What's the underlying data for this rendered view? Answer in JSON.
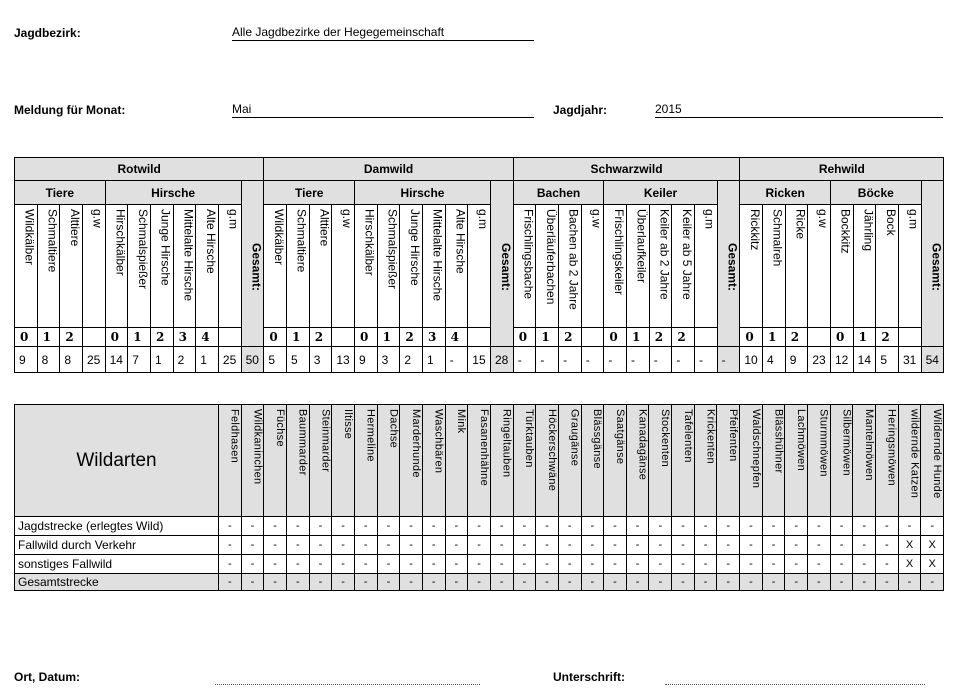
{
  "header": {
    "jagdbezirk_label": "Jagdbezirk:",
    "jagdbezirk_value": "Alle Jagdbezirke der Hegegemeinschaft",
    "monat_label": "Meldung für Monat:",
    "monat_value": "Mai",
    "jagdjahr_label": "Jagdjahr:",
    "jagdjahr_value": "2015"
  },
  "upper": {
    "groups": [
      {
        "name": "Rotwild",
        "total_label": "Gesamt:",
        "total": "50",
        "subgroups": [
          {
            "name": "Tiere",
            "cols": [
              {
                "label": "Wildkälber",
                "age": "0",
                "value": "9"
              },
              {
                "label": "Schmaltiere",
                "age": "1",
                "value": "8"
              },
              {
                "label": "Alttiere",
                "age": "2",
                "value": "8"
              },
              {
                "label": "g.w",
                "age": "",
                "value": "25"
              }
            ]
          },
          {
            "name": "Hirsche",
            "cols": [
              {
                "label": "Hirschkälber",
                "age": "0",
                "value": "14"
              },
              {
                "label": "Schmalspießer",
                "age": "1",
                "value": "7"
              },
              {
                "label": "Junge Hirsche",
                "age": "2",
                "value": "1"
              },
              {
                "label": "Mittelalte Hirsche",
                "age": "3",
                "value": "2"
              },
              {
                "label": "Alte Hirsche",
                "age": "4",
                "value": "1"
              },
              {
                "label": "g.m",
                "age": "",
                "value": "25"
              }
            ]
          }
        ]
      },
      {
        "name": "Damwild",
        "total_label": "Gesamt:",
        "total": "28",
        "subgroups": [
          {
            "name": "Tiere",
            "cols": [
              {
                "label": "Wildkälber",
                "age": "0",
                "value": "5"
              },
              {
                "label": "Schmaltiere",
                "age": "1",
                "value": "5"
              },
              {
                "label": "Alttiere",
                "age": "2",
                "value": "3"
              },
              {
                "label": "g.w",
                "age": "",
                "value": "13"
              }
            ]
          },
          {
            "name": "Hirsche",
            "cols": [
              {
                "label": "Hirschkälber",
                "age": "0",
                "value": "9"
              },
              {
                "label": "Schmalspießer",
                "age": "1",
                "value": "3"
              },
              {
                "label": "Junge Hirsche",
                "age": "2",
                "value": "2"
              },
              {
                "label": "Mittelalte Hirsche",
                "age": "3",
                "value": "1"
              },
              {
                "label": "Alte Hirsche",
                "age": "4",
                "value": "-"
              },
              {
                "label": "g.m",
                "age": "",
                "value": "15"
              }
            ]
          }
        ]
      },
      {
        "name": "Schwarzwild",
        "total_label": "Gesamt:",
        "total": "-",
        "subgroups": [
          {
            "name": "Bachen",
            "cols": [
              {
                "label": "Frischlingsbache",
                "age": "0",
                "value": "-"
              },
              {
                "label": "Überläuferbachen",
                "age": "1",
                "value": "-"
              },
              {
                "label": "Bachen ab 2 Jahre",
                "age": "2",
                "value": "-"
              },
              {
                "label": "g.w",
                "age": "",
                "value": "-"
              }
            ]
          },
          {
            "name": "Keiler",
            "cols": [
              {
                "label": "Frischlingskeiler",
                "age": "0",
                "value": "-"
              },
              {
                "label": "Überlaufkeiler",
                "age": "1",
                "value": "-"
              },
              {
                "label": "Keiler ab 2 Jahre",
                "age": "2",
                "value": "-"
              },
              {
                "label": "Keiler ab 5 Jahre",
                "age": "2",
                "value": "-"
              },
              {
                "label": "g.m",
                "age": "",
                "value": "-"
              }
            ]
          }
        ]
      },
      {
        "name": "Rehwild",
        "total_label": "Gesamt:",
        "total": "54",
        "subgroups": [
          {
            "name": "Ricken",
            "cols": [
              {
                "label": "Rickkitz",
                "age": "0",
                "value": "10"
              },
              {
                "label": "Schmalreh",
                "age": "1",
                "value": "4"
              },
              {
                "label": "Ricke",
                "age": "2",
                "value": "9"
              },
              {
                "label": "g.w",
                "age": "",
                "value": "23"
              }
            ]
          },
          {
            "name": "Böcke",
            "cols": [
              {
                "label": "Bockkitz",
                "age": "0",
                "value": "12"
              },
              {
                "label": "Jährling",
                "age": "1",
                "value": "14"
              },
              {
                "label": "Bock",
                "age": "2",
                "value": "5"
              },
              {
                "label": "g.m",
                "age": "",
                "value": "31"
              }
            ]
          }
        ]
      }
    ]
  },
  "lower": {
    "title": "Wildarten",
    "species": [
      "Feldhasen",
      "Wildkaninchen",
      "Füchse",
      "Baummarder",
      "Steinmarder",
      "Iltisse",
      "Hermeline",
      "Dachse",
      "Marderhunde",
      "Waschbären",
      "Mink",
      "Fasanenhähne",
      "Ringeltauben",
      "Türktauben",
      "Höckerschwäne",
      "Graugänse",
      "Blässgänse",
      "Saatgänse",
      "Kanadagänse",
      "Stockenten",
      "Tafelenten",
      "Krickenten",
      "Pfeifenten",
      "Waldschnepfen",
      "Blässhühner",
      "Lachmöwen",
      "Sturmmöwen",
      "Silbermöwen",
      "Mantelmöwen",
      "Heringsmöwen",
      "wildernde Katzen",
      "Wildernde Hunde"
    ],
    "rows": [
      {
        "label": "Jagdstrecke (erlegtes Wild)",
        "shaded": false,
        "values": [
          "-",
          "-",
          "-",
          "-",
          "-",
          "-",
          "-",
          "-",
          "-",
          "-",
          "-",
          "-",
          "-",
          "-",
          "-",
          "-",
          "-",
          "-",
          "-",
          "-",
          "-",
          "-",
          "-",
          "-",
          "-",
          "-",
          "-",
          "-",
          "-",
          "-",
          "-",
          "-"
        ]
      },
      {
        "label": "Fallwild durch Verkehr",
        "shaded": false,
        "values": [
          "-",
          "-",
          "-",
          "-",
          "-",
          "-",
          "-",
          "-",
          "-",
          "-",
          "-",
          "-",
          "-",
          "-",
          "-",
          "-",
          "-",
          "-",
          "-",
          "-",
          "-",
          "-",
          "-",
          "-",
          "-",
          "-",
          "-",
          "-",
          "-",
          "-",
          "X",
          "X"
        ]
      },
      {
        "label": "sonstiges Fallwild",
        "shaded": false,
        "values": [
          "-",
          "-",
          "-",
          "-",
          "-",
          "-",
          "-",
          "-",
          "-",
          "-",
          "-",
          "-",
          "-",
          "-",
          "-",
          "-",
          "-",
          "-",
          "-",
          "-",
          "-",
          "-",
          "-",
          "-",
          "-",
          "-",
          "-",
          "-",
          "-",
          "-",
          "X",
          "X"
        ]
      },
      {
        "label": "Gesamtstrecke",
        "shaded": true,
        "values": [
          "-",
          "-",
          "-",
          "-",
          "-",
          "-",
          "-",
          "-",
          "-",
          "-",
          "-",
          "-",
          "-",
          "-",
          "-",
          "-",
          "-",
          "-",
          "-",
          "-",
          "-",
          "-",
          "-",
          "-",
          "-",
          "-",
          "-",
          "-",
          "-",
          "-",
          "-",
          "-"
        ]
      }
    ]
  },
  "footer": {
    "ort_label": "Ort, Datum:",
    "unterschrift_label": "Unterschrift:"
  },
  "colors": {
    "shade": "#e0e0e0"
  }
}
